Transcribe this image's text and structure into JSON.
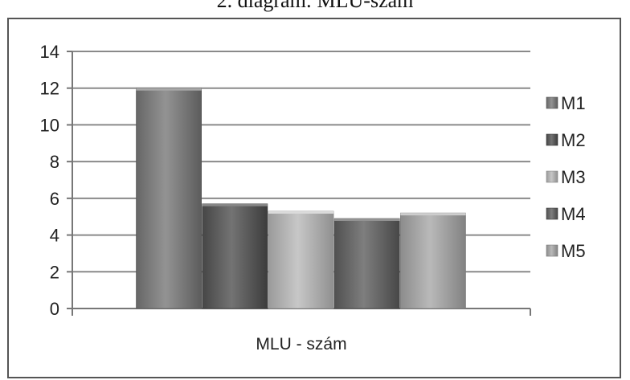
{
  "caption": "2.   diagram: MLU-szám",
  "chart_data": {
    "type": "bar",
    "title": "",
    "xlabel": "",
    "ylabel": "",
    "categories": [
      "MLU - szám"
    ],
    "series": [
      {
        "name": "M1",
        "values": [
          12.0
        ],
        "color": "#7f7f7f"
      },
      {
        "name": "M2",
        "values": [
          5.7
        ],
        "color": "#5f5f5f"
      },
      {
        "name": "M3",
        "values": [
          5.3
        ],
        "color": "#b3b3b3"
      },
      {
        "name": "M4",
        "values": [
          4.9
        ],
        "color": "#6a6a6a"
      },
      {
        "name": "M5",
        "values": [
          5.2
        ],
        "color": "#a5a5a5"
      }
    ],
    "ylim": [
      0,
      14
    ],
    "yticks": [
      0,
      2,
      4,
      6,
      8,
      10,
      12,
      14
    ],
    "grid": true,
    "legend": "right"
  }
}
